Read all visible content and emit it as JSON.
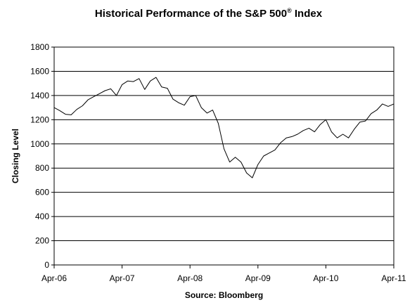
{
  "chart_data": {
    "type": "line",
    "title_main": "Historical Performance of the S&P 500",
    "title_sup": "®",
    "title_suffix": " Index",
    "ylabel": "Closing Level",
    "xlabel": "Source: Bloomberg",
    "ylim": [
      0,
      1800
    ],
    "y_ticks": [
      "0",
      "200",
      "400",
      "600",
      "800",
      "1000",
      "1200",
      "1400",
      "1600",
      "1800"
    ],
    "x_range": [
      "2006-04",
      "2011-04"
    ],
    "x_ticks": [
      "Apr-06",
      "Apr-07",
      "Apr-08",
      "Apr-09",
      "Apr-10",
      "Apr-11"
    ],
    "grid": true,
    "line_color": "#000000",
    "series": [
      {
        "x": [
          "2006-04",
          "2006-05",
          "2006-06",
          "2006-07",
          "2006-08",
          "2006-09",
          "2006-10",
          "2006-11",
          "2006-12",
          "2007-01",
          "2007-02",
          "2007-03",
          "2007-04",
          "2007-05",
          "2007-06",
          "2007-07",
          "2007-08",
          "2007-09",
          "2007-10",
          "2007-11",
          "2007-12",
          "2008-01",
          "2008-02",
          "2008-03",
          "2008-04",
          "2008-05",
          "2008-06",
          "2008-07",
          "2008-08",
          "2008-09",
          "2008-10",
          "2008-11",
          "2008-12",
          "2009-01",
          "2009-02",
          "2009-03",
          "2009-04",
          "2009-05",
          "2009-06",
          "2009-07",
          "2009-08",
          "2009-09",
          "2009-10",
          "2009-11",
          "2009-12",
          "2010-01",
          "2010-02",
          "2010-03",
          "2010-04",
          "2010-05",
          "2010-06",
          "2010-07",
          "2010-08",
          "2010-09",
          "2010-10",
          "2010-11",
          "2010-12",
          "2011-01",
          "2011-02",
          "2011-03",
          "2011-04"
        ],
        "values": [
          1300,
          1275,
          1245,
          1240,
          1285,
          1315,
          1365,
          1390,
          1415,
          1440,
          1455,
          1400,
          1490,
          1520,
          1515,
          1540,
          1450,
          1520,
          1550,
          1470,
          1460,
          1370,
          1340,
          1320,
          1390,
          1400,
          1300,
          1255,
          1280,
          1170,
          960,
          850,
          890,
          850,
          760,
          720,
          830,
          900,
          925,
          950,
          1010,
          1050,
          1060,
          1080,
          1110,
          1130,
          1100,
          1160,
          1200,
          1100,
          1050,
          1080,
          1050,
          1120,
          1180,
          1190,
          1250,
          1280,
          1330,
          1310,
          1330
        ]
      }
    ]
  }
}
